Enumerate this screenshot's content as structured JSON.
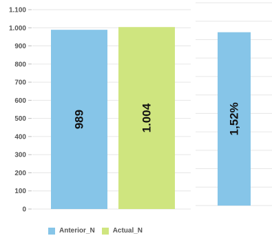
{
  "chart_data": [
    {
      "type": "bar",
      "categories": [
        "Anterior_N",
        "Actual_N"
      ],
      "values": [
        989,
        1004
      ],
      "data_labels": [
        "989",
        "1.004"
      ],
      "colors": [
        "#86c5e8",
        "#cfe57f"
      ],
      "ylim": [
        0,
        1100
      ],
      "yticks": [
        0,
        100,
        200,
        300,
        400,
        500,
        600,
        700,
        800,
        900,
        1000,
        1100
      ],
      "ytick_labels": [
        "0",
        "100",
        "200",
        "300",
        "400",
        "500",
        "600",
        "700",
        "800",
        "900",
        "1.000",
        "1.100"
      ],
      "grid": true,
      "legend": "bottom-left"
    },
    {
      "type": "bar",
      "values": [
        1.52
      ],
      "data_labels": [
        "1,52%"
      ],
      "colors": [
        "#86c5e8"
      ],
      "grid": true
    }
  ]
}
